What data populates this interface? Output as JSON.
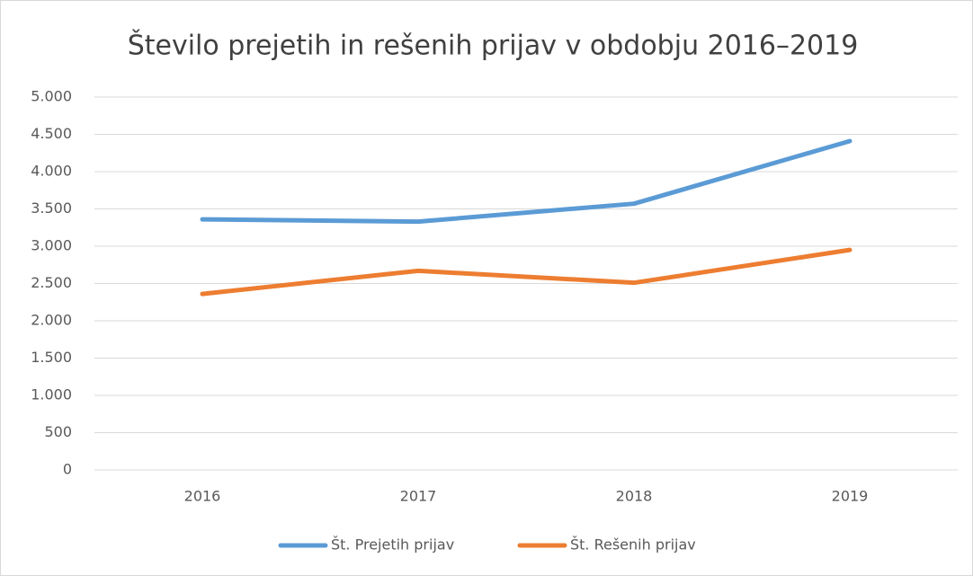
{
  "chart_data": {
    "type": "line",
    "title": "Število prejetih in rešenih prijav v obdobju 2016–2019",
    "categories": [
      "2016",
      "2017",
      "2018",
      "2019"
    ],
    "series": [
      {
        "name": "Št. Prejetih prijav",
        "color": "#5b9bd5",
        "values": [
          3360,
          3330,
          3570,
          4410
        ]
      },
      {
        "name": "Št. Rešenih prijav",
        "color": "#ed7d31",
        "values": [
          2360,
          2670,
          2510,
          2950
        ]
      }
    ],
    "ylim": [
      0,
      5000
    ],
    "yticks": [
      0,
      500,
      {
        "value": 1000,
        "label": "1.000"
      },
      {
        "value": 1500,
        "label": "1.500"
      },
      {
        "value": 2000,
        "label": "2.000"
      },
      {
        "value": 2500,
        "label": "2.500"
      },
      {
        "value": 3000,
        "label": "3.000"
      },
      {
        "value": 3500,
        "label": "3.500"
      },
      {
        "value": 4000,
        "label": "4.000"
      },
      {
        "value": 4500,
        "label": "4.500"
      },
      {
        "value": 5000,
        "label": "5.000"
      }
    ],
    "grid": true,
    "legend": "bottom"
  }
}
